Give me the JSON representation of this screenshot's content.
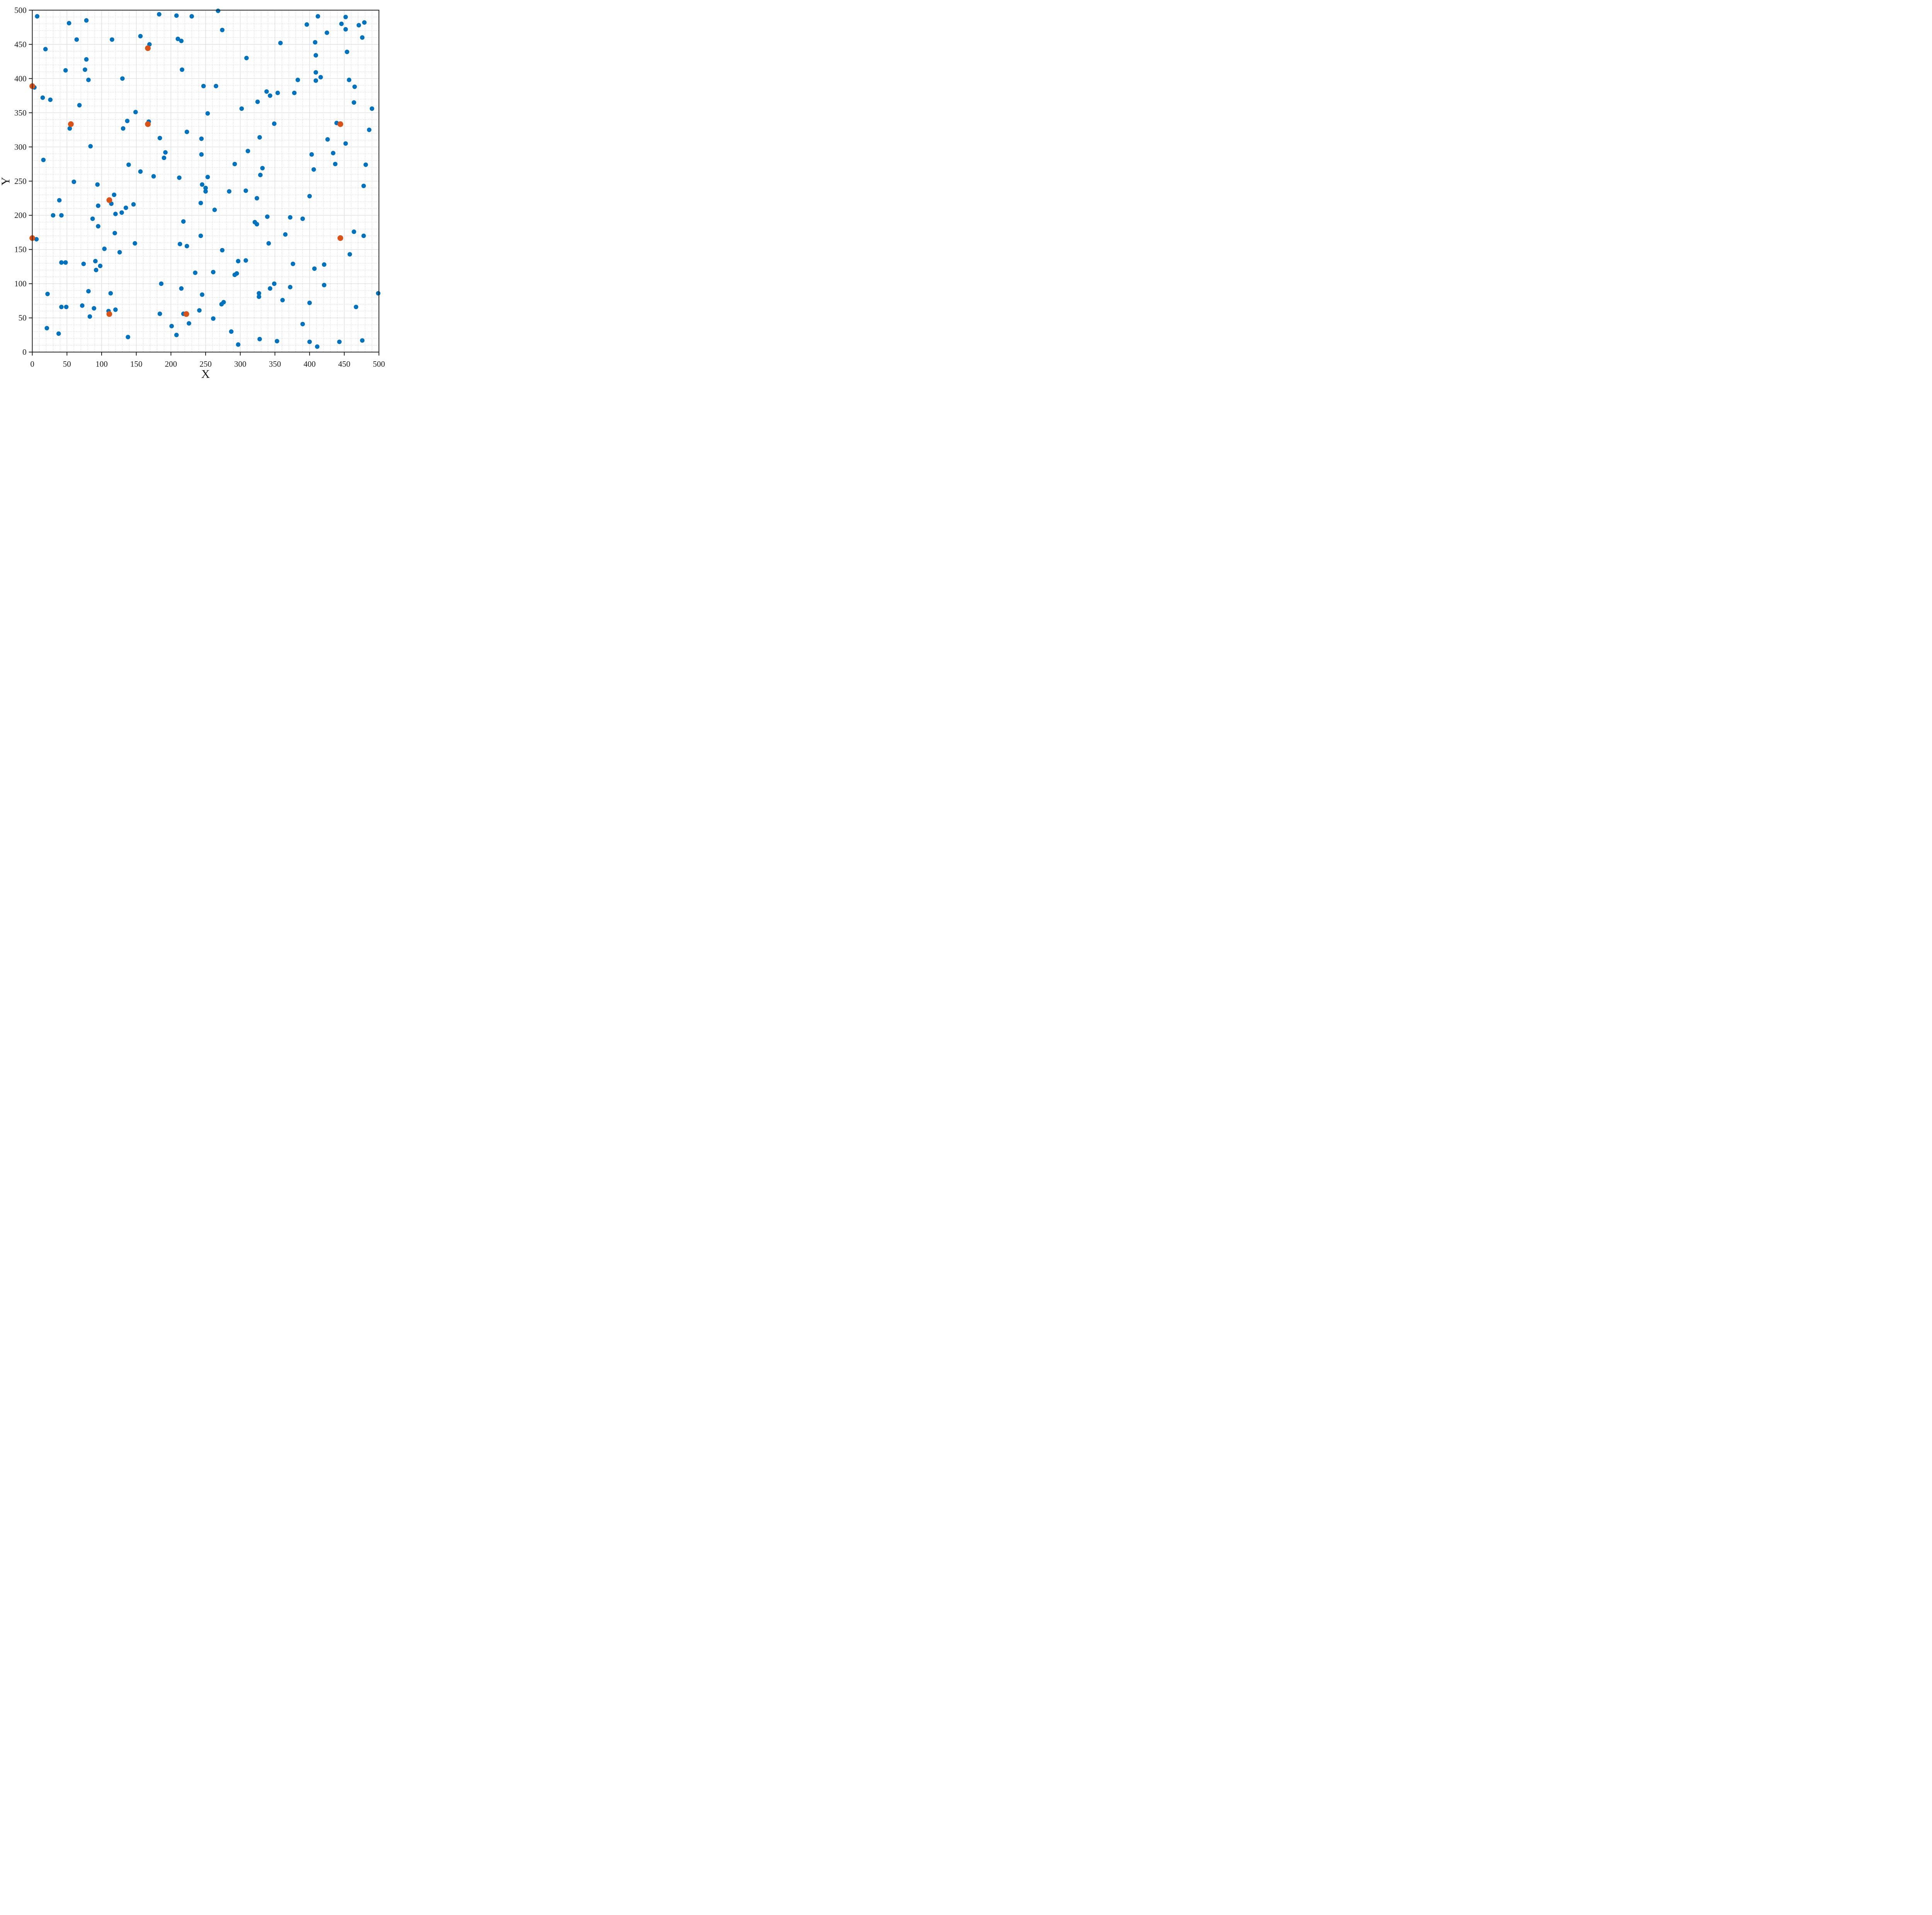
{
  "figure": {
    "background_color": "#ffffff",
    "axis_color": "#1f1f1f",
    "major_grid_color": "#dcdcdc",
    "minor_grid_color": "#c9c9c9"
  },
  "chart_data": {
    "type": "scatter",
    "title": "",
    "xlabel": "X",
    "ylabel": "Y",
    "xlim": [
      0,
      500
    ],
    "ylim": [
      0,
      500
    ],
    "xticks": [
      0,
      50,
      100,
      150,
      200,
      250,
      300,
      350,
      400,
      450,
      500
    ],
    "yticks": [
      0,
      50,
      100,
      150,
      200,
      250,
      300,
      350,
      400,
      450,
      500
    ],
    "minor_grid_step": 10,
    "grid": {
      "major": "solid",
      "minor": "dotted",
      "visible": true
    },
    "legend": {
      "visible": false
    },
    "series": [
      {
        "name": "scatter-points",
        "marker": "circle",
        "color": "#0072BD",
        "marker_radius": 5.8,
        "points": [
          [
            7,
            491
          ],
          [
            78,
            485
          ],
          [
            53,
            481
          ],
          [
            156,
            462
          ],
          [
            64,
            457
          ],
          [
            115,
            457
          ],
          [
            169,
            450
          ],
          [
            19,
            443
          ],
          [
            78,
            428
          ],
          [
            76,
            413
          ],
          [
            48,
            412
          ],
          [
            130,
            400
          ],
          [
            81,
            398
          ],
          [
            3,
            387
          ],
          [
            15,
            372
          ],
          [
            26,
            369
          ],
          [
            68,
            361
          ],
          [
            149,
            351
          ],
          [
            137,
            338
          ],
          [
            168,
            337
          ],
          [
            183,
            494
          ],
          [
            208,
            492
          ],
          [
            230,
            491
          ],
          [
            268,
            499
          ],
          [
            274,
            471
          ],
          [
            210,
            458
          ],
          [
            215,
            455
          ],
          [
            309,
            430
          ],
          [
            216,
            413
          ],
          [
            247,
            389
          ],
          [
            265,
            389
          ],
          [
            325,
            366
          ],
          [
            302,
            356
          ],
          [
            253,
            349
          ],
          [
            412,
            491
          ],
          [
            452,
            490
          ],
          [
            446,
            480
          ],
          [
            479,
            482
          ],
          [
            471,
            478
          ],
          [
            452,
            472
          ],
          [
            396,
            479
          ],
          [
            425,
            467
          ],
          [
            476,
            460
          ],
          [
            358,
            452
          ],
          [
            408,
            453
          ],
          [
            454,
            439
          ],
          [
            409,
            434
          ],
          [
            409,
            409
          ],
          [
            416,
            402
          ],
          [
            409,
            397
          ],
          [
            383,
            398
          ],
          [
            457,
            398
          ],
          [
            465,
            388
          ],
          [
            338,
            381
          ],
          [
            343,
            375
          ],
          [
            354,
            379
          ],
          [
            378,
            379
          ],
          [
            464,
            365
          ],
          [
            490,
            356
          ],
          [
            349,
            334
          ],
          [
            439,
            335
          ],
          [
            54,
            327
          ],
          [
            131,
            327
          ],
          [
            223,
            322
          ],
          [
            184,
            313
          ],
          [
            244,
            312
          ],
          [
            328,
            314
          ],
          [
            486,
            325
          ],
          [
            426,
            311
          ],
          [
            452,
            305
          ],
          [
            84,
            301
          ],
          [
            16,
            281
          ],
          [
            139,
            274
          ],
          [
            156,
            264
          ],
          [
            60,
            249
          ],
          [
            94,
            245
          ],
          [
            118,
            230
          ],
          [
            39,
            222
          ],
          [
            114,
            217
          ],
          [
            95,
            214
          ],
          [
            135,
            211
          ],
          [
            146,
            216
          ],
          [
            129,
            204
          ],
          [
            120,
            202
          ],
          [
            87,
            195
          ],
          [
            95,
            184
          ],
          [
            119,
            174
          ],
          [
            30,
            200
          ],
          [
            42,
            200
          ],
          [
            6,
            165
          ],
          [
            192,
            292
          ],
          [
            190,
            284
          ],
          [
            244,
            289
          ],
          [
            311,
            294
          ],
          [
            292,
            275
          ],
          [
            332,
            269
          ],
          [
            329,
            259
          ],
          [
            175,
            257
          ],
          [
            212,
            255
          ],
          [
            253,
            256
          ],
          [
            245,
            245
          ],
          [
            250,
            240
          ],
          [
            250,
            235
          ],
          [
            284,
            235
          ],
          [
            308,
            236
          ],
          [
            324,
            225
          ],
          [
            243,
            218
          ],
          [
            263,
            208
          ],
          [
            339,
            198
          ],
          [
            321,
            190
          ],
          [
            324,
            187
          ],
          [
            218,
            191
          ],
          [
            243,
            170
          ],
          [
            403,
            289
          ],
          [
            434,
            291
          ],
          [
            437,
            275
          ],
          [
            481,
            274
          ],
          [
            406,
            267
          ],
          [
            478,
            243
          ],
          [
            400,
            228
          ],
          [
            372,
            197
          ],
          [
            390,
            195
          ],
          [
            365,
            172
          ],
          [
            464,
            176
          ],
          [
            478,
            170
          ],
          [
            341,
            159
          ],
          [
            148,
            159
          ],
          [
            104,
            151
          ],
          [
            126,
            146
          ],
          [
            42,
            131
          ],
          [
            48,
            131
          ],
          [
            74,
            129
          ],
          [
            91,
            133
          ],
          [
            98,
            126
          ],
          [
            92,
            120
          ],
          [
            81,
            89
          ],
          [
            22,
            85
          ],
          [
            113,
            86
          ],
          [
            42,
            66
          ],
          [
            49,
            66
          ],
          [
            72,
            68
          ],
          [
            89,
            64
          ],
          [
            110,
            60
          ],
          [
            120,
            62
          ],
          [
            83,
            52
          ],
          [
            21,
            35
          ],
          [
            38,
            27
          ],
          [
            138,
            22
          ],
          [
            213,
            158
          ],
          [
            223,
            155
          ],
          [
            274,
            149
          ],
          [
            297,
            133
          ],
          [
            308,
            134
          ],
          [
            235,
            116
          ],
          [
            261,
            117
          ],
          [
            292,
            113
          ],
          [
            295,
            115
          ],
          [
            186,
            100
          ],
          [
            215,
            93
          ],
          [
            245,
            84
          ],
          [
            273,
            70
          ],
          [
            276,
            73
          ],
          [
            241,
            61
          ],
          [
            184,
            56
          ],
          [
            218,
            56
          ],
          [
            261,
            49
          ],
          [
            226,
            42
          ],
          [
            201,
            38
          ],
          [
            287,
            30
          ],
          [
            208,
            25
          ],
          [
            328,
            19
          ],
          [
            297,
            11
          ],
          [
            343,
            93
          ],
          [
            327,
            86
          ],
          [
            327,
            81
          ],
          [
            458,
            143
          ],
          [
            376,
            129
          ],
          [
            421,
            128
          ],
          [
            407,
            122
          ],
          [
            349,
            100
          ],
          [
            372,
            95
          ],
          [
            421,
            98
          ],
          [
            361,
            76
          ],
          [
            400,
            72
          ],
          [
            467,
            66
          ],
          [
            499,
            86
          ],
          [
            390,
            41
          ],
          [
            353,
            16
          ],
          [
            400,
            15
          ],
          [
            411,
            8
          ],
          [
            443,
            15
          ],
          [
            476,
            17
          ]
        ]
      },
      {
        "name": "highlighted-points",
        "marker": "circle",
        "color": "#D95319",
        "marker_radius": 7.4,
        "points": [
          [
            0,
            388.9
          ],
          [
            0,
            166.7
          ],
          [
            55.6,
            333.3
          ],
          [
            111.1,
            222.2
          ],
          [
            111.1,
            55.6
          ],
          [
            166.7,
            444.4
          ],
          [
            166.7,
            333.3
          ],
          [
            222.2,
            55.6
          ],
          [
            444.4,
            333.3
          ],
          [
            444.4,
            166.7
          ]
        ]
      }
    ]
  }
}
